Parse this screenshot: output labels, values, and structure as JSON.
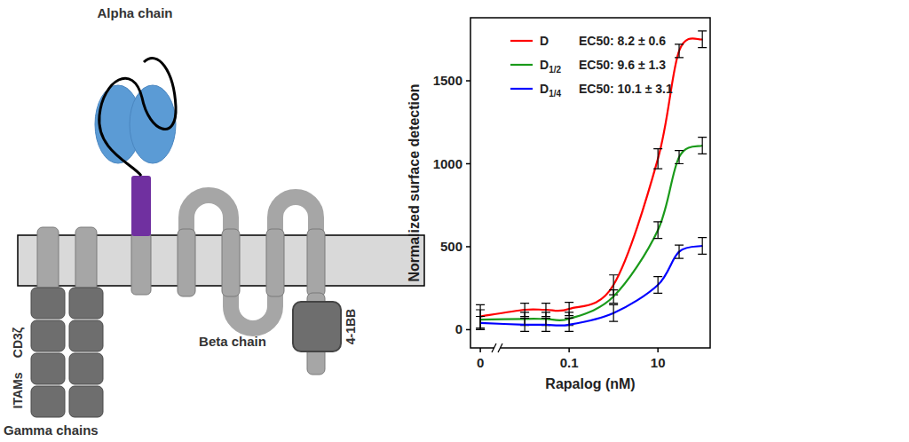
{
  "diagram": {
    "alpha_chain": "Alpha chain",
    "beta_chain": "Beta chain",
    "gamma_chains": "Gamma chains",
    "itams": "ITAMs",
    "cd3z": "CD3ζ",
    "costim": "4-1BB"
  },
  "chart_data": {
    "type": "line",
    "x_label": "Rapalog (nM)",
    "y_label": "Normalized surface detection",
    "log": "x",
    "legend": "top-left",
    "xlim": [
      0.0006,
      150
    ],
    "xticks": [
      {
        "value": 0.001,
        "label": "0"
      },
      0.1,
      10
    ],
    "ylim": [
      -110,
      1880
    ],
    "yticks": [
      0,
      500,
      1000,
      1500
    ],
    "x": [
      0.001,
      0.01,
      0.03,
      0.1,
      1,
      10,
      30,
      100
    ],
    "series": [
      {
        "name": "D",
        "label": "EC50: 8.2 ± 0.6",
        "color": "#ff0000",
        "values": [
          80,
          120,
          120,
          125,
          270,
          1030,
          1680,
          1750
        ],
        "errors": [
          70,
          40,
          40,
          40,
          60,
          60,
          40,
          50
        ]
      },
      {
        "name": "D1/2",
        "label": "EC50: 9.6 ± 1.3",
        "color": "#1a9a1a",
        "values": [
          60,
          65,
          65,
          65,
          200,
          600,
          1040,
          1110
        ],
        "errors": [
          60,
          40,
          40,
          40,
          40,
          50,
          40,
          50
        ]
      },
      {
        "name": "D1/4",
        "label": "EC50: 10.1 ± 3.1",
        "color": "#0000ff",
        "values": [
          40,
          30,
          30,
          30,
          100,
          270,
          470,
          505
        ],
        "errors": [
          40,
          40,
          40,
          40,
          50,
          50,
          40,
          50
        ]
      }
    ]
  }
}
